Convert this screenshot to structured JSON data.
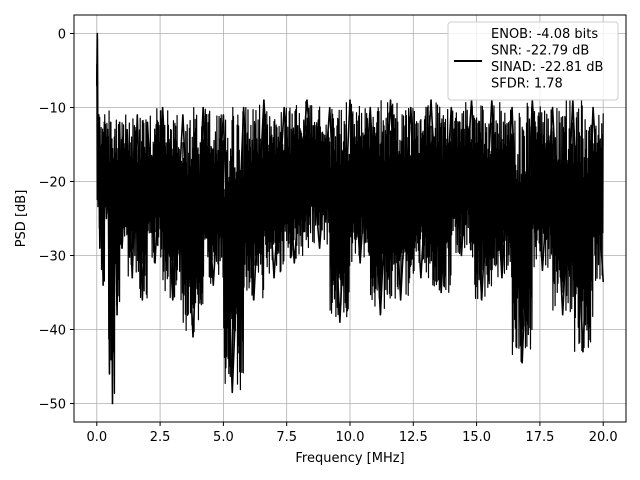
{
  "chart_data": {
    "type": "line",
    "title": "",
    "xlabel": "Frequency [MHz]",
    "ylabel": "PSD [dB]",
    "xlim": [
      -0.9,
      20.9
    ],
    "ylim": [
      -52.5,
      2.5
    ],
    "x_ticks": [
      0.0,
      2.5,
      5.0,
      7.5,
      10.0,
      12.5,
      15.0,
      17.5,
      20.0
    ],
    "x_tick_labels": [
      "0.0",
      "2.5",
      "5.0",
      "7.5",
      "10.0",
      "12.5",
      "15.0",
      "17.5",
      "20.0"
    ],
    "y_ticks": [
      0,
      -10,
      -20,
      -30,
      -40,
      -50
    ],
    "y_tick_labels": [
      "0",
      "−10",
      "−20",
      "−30",
      "−40",
      "−50"
    ],
    "grid": true,
    "line_color": "#000000",
    "legend": {
      "placement": "top-right",
      "entries": [
        "ENOB: -4.08 bits",
        "SNR: -22.79 dB",
        "SINAD: -22.81 dB",
        "SFDR: 1.78"
      ]
    },
    "series": [
      {
        "x": [
          0.0,
          0.02,
          0.05,
          0.08,
          0.12,
          0.18,
          0.25,
          0.3,
          0.38,
          0.45,
          0.5,
          0.55,
          0.62,
          0.7,
          0.8,
          0.9,
          1.0,
          1.2,
          1.4,
          1.6,
          1.8,
          2.0,
          2.3,
          2.6,
          3.0,
          3.4,
          3.8,
          4.2,
          4.6,
          5.0,
          5.35,
          5.8,
          6.2,
          6.6,
          7.0,
          7.4,
          7.8,
          8.3,
          8.8,
          9.2,
          9.6,
          10.0,
          10.4,
          10.8,
          11.2,
          11.6,
          12.0,
          12.4,
          12.8,
          13.2,
          13.6,
          14.0,
          14.4,
          14.8,
          15.2,
          15.6,
          16.0,
          16.4,
          16.8,
          17.2,
          17.6,
          18.0,
          18.4,
          18.8,
          19.2,
          19.6,
          20.0
        ],
        "y": [
          -7,
          0,
          -20,
          -11,
          -29,
          -15,
          -34,
          -12,
          -25,
          -14,
          -46,
          -12,
          -50,
          -14,
          -38,
          -12,
          -29,
          -13,
          -33,
          -11,
          -36,
          -12,
          -31,
          -10,
          -36,
          -11,
          -41,
          -10,
          -34,
          -11,
          -48.5,
          -10,
          -36,
          -9,
          -33,
          -10,
          -31,
          -9,
          -29,
          -10,
          -39,
          -9,
          -31,
          -10,
          -38,
          -9,
          -36,
          -10,
          -33,
          -9,
          -35,
          -10,
          -30,
          -9,
          -36,
          -9,
          -33,
          -10,
          -44.5,
          -9,
          -32,
          -10,
          -38,
          -9,
          -43,
          -10,
          -33.5
        ]
      }
    ]
  }
}
